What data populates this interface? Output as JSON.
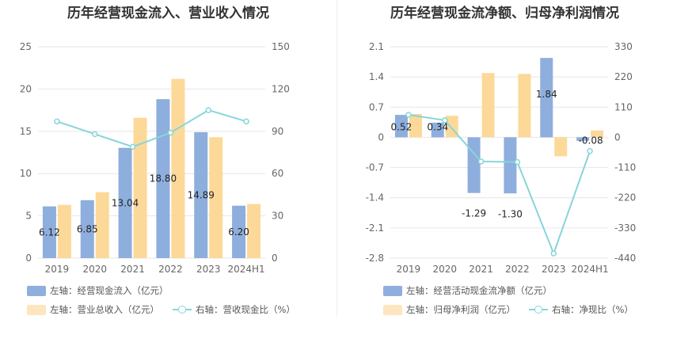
{
  "chart_data": [
    {
      "type": "bar",
      "title": "历年经营现金流入、营业收入情况",
      "categories": [
        "2019",
        "2020",
        "2021",
        "2022",
        "2023",
        "2024H1"
      ],
      "left_ticks": [
        "25",
        "20",
        "15",
        "10",
        "5",
        "0"
      ],
      "right_ticks": [
        "150",
        "120",
        "90",
        "60",
        "30",
        "0"
      ],
      "ylim_left": [
        0,
        25
      ],
      "ylim_right": [
        0,
        150
      ],
      "series": [
        {
          "name": "左轴：经营现金流入（亿元）",
          "axis": "left",
          "kind": "bar",
          "color": "#8eaedd",
          "values": [
            6.12,
            6.85,
            13.04,
            18.8,
            14.89,
            6.2
          ],
          "labels": [
            "6.12",
            "6.85",
            "13.04",
            "18.80",
            "14.89",
            "6.20"
          ]
        },
        {
          "name": "左轴：营业总收入（亿元）",
          "axis": "left",
          "kind": "bar",
          "color": "#fcd999",
          "values": [
            6.3,
            7.8,
            16.6,
            21.2,
            14.3,
            6.4
          ]
        },
        {
          "name": "右轴：营收现金比（%）",
          "axis": "right",
          "kind": "line",
          "color": "#87d5da",
          "values": [
            97,
            88,
            79,
            89,
            105,
            97
          ]
        }
      ]
    },
    {
      "type": "bar",
      "title": "历年经营现金流净额、归母净利润情况",
      "categories": [
        "2019",
        "2020",
        "2021",
        "2022",
        "2023",
        "2024H1"
      ],
      "left_ticks": [
        "2.1",
        "1.4",
        "0.7",
        "0",
        "-0.7",
        "-1.4",
        "-2.1",
        "-2.8"
      ],
      "right_ticks": [
        "330",
        "220",
        "110",
        "0",
        "-110",
        "-220",
        "-330",
        "-440"
      ],
      "ylim_left": [
        -2.8,
        2.1
      ],
      "ylim_right": [
        -440,
        330
      ],
      "series": [
        {
          "name": "左轴：经营活动现金流净额（亿元）",
          "axis": "left",
          "kind": "bar",
          "color": "#8eaedd",
          "values": [
            0.52,
            0.34,
            -1.29,
            -1.3,
            1.84,
            -0.08
          ],
          "labels": [
            "0.52",
            "0.34",
            "-1.29",
            "-1.30",
            "1.84",
            "-0.08"
          ]
        },
        {
          "name": "左轴：归母净利润（亿元）",
          "axis": "left",
          "kind": "bar",
          "color": "#fcd999",
          "values": [
            0.54,
            0.5,
            1.49,
            1.47,
            -0.44,
            0.16
          ]
        },
        {
          "name": "右轴：净现比（%）",
          "axis": "right",
          "kind": "line",
          "color": "#87d5da",
          "values": [
            82,
            62,
            -88,
            -90,
            -423,
            -50
          ]
        }
      ]
    }
  ]
}
